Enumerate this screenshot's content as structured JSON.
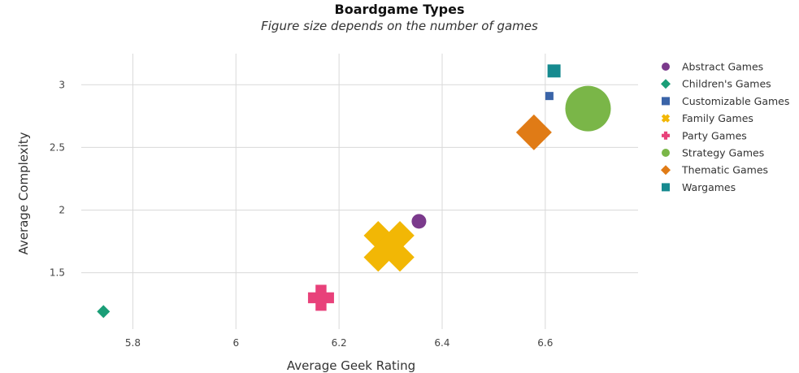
{
  "chart_data": {
    "type": "scatter",
    "title": "Boardgame Types",
    "subtitle": "Figure size depends on the number of games",
    "xlabel": "Average Geek Rating",
    "ylabel": "Average Complexity",
    "xlim": [
      5.7,
      6.78
    ],
    "ylim": [
      1.05,
      3.3
    ],
    "xticks": [
      5.8,
      6,
      6.2,
      6.4,
      6.6
    ],
    "yticks": [
      1.5,
      2,
      2.5,
      3
    ],
    "xtick_labels": [
      "5.8",
      "6",
      "6.2",
      "6.4",
      "6.6"
    ],
    "ytick_labels": [
      "1.5",
      "2",
      "2.5",
      "3"
    ],
    "grid": true,
    "legend_position": "right",
    "series": [
      {
        "name": "Abstract Games",
        "marker": "circle",
        "color": "#7b3a8c",
        "x": 6.355,
        "y": 1.91,
        "size": 9
      },
      {
        "name": "Children's Games",
        "marker": "diamond",
        "color": "#1a9e77",
        "x": 5.743,
        "y": 1.19,
        "size": 8
      },
      {
        "name": "Customizable Games",
        "marker": "square",
        "color": "#3a64a8",
        "x": 6.608,
        "y": 2.91,
        "size": 5
      },
      {
        "name": "Family Games",
        "marker": "x",
        "color": "#f2b705",
        "x": 6.297,
        "y": 1.71,
        "size": 30
      },
      {
        "name": "Party Games",
        "marker": "plus",
        "color": "#e8417a",
        "x": 6.165,
        "y": 1.3,
        "size": 16
      },
      {
        "name": "Strategy Games",
        "marker": "circle",
        "color": "#7ab648",
        "x": 6.683,
        "y": 2.81,
        "size": 28
      },
      {
        "name": "Thematic Games",
        "marker": "diamond",
        "color": "#e07b16",
        "x": 6.578,
        "y": 2.62,
        "size": 22
      },
      {
        "name": "Wargames",
        "marker": "square",
        "color": "#168a8f",
        "x": 6.617,
        "y": 3.11,
        "size": 8
      }
    ]
  }
}
